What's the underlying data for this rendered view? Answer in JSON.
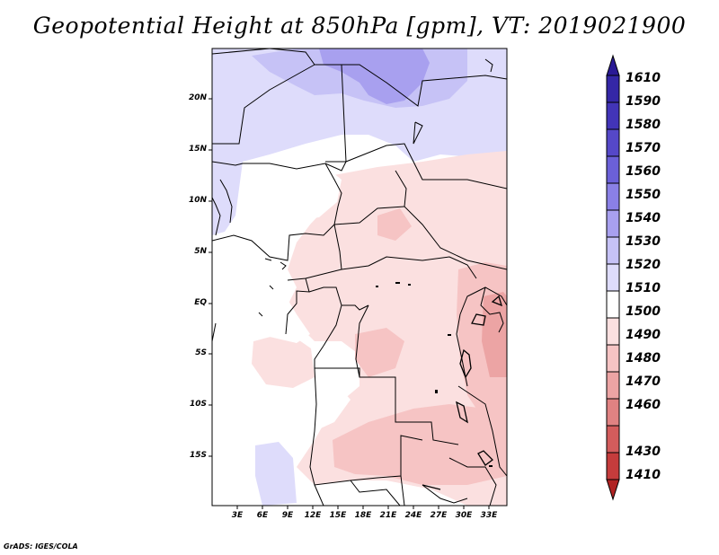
{
  "title": "Geopotential Height at 850hPa [gpm], VT: 2019021900",
  "credit": "GrADS: IGES/COLA",
  "y_axis_labels": [
    "20N",
    "15N",
    "10N",
    "5N",
    "EQ",
    "5S",
    "10S",
    "15S"
  ],
  "x_axis_labels": [
    "3E",
    "6E",
    "9E",
    "12E",
    "15E",
    "18E",
    "21E",
    "24E",
    "27E",
    "30E",
    "33E"
  ],
  "colorbar": {
    "labels": [
      "1610",
      "1590",
      "1580",
      "1570",
      "1560",
      "1550",
      "1540",
      "1530",
      "1520",
      "1510",
      "1500",
      "1490",
      "1480",
      "1470",
      "1460",
      "1430",
      "1410"
    ],
    "colors": [
      "#2a1a95",
      "#3427a6",
      "#4234b8",
      "#5548c8",
      "#6b60d8",
      "#8a80e6",
      "#a8a0ef",
      "#c6c2f6",
      "#dedcfb",
      "#ffffff",
      "#fbe0e0",
      "#f6c4c4",
      "#eca4a4",
      "#e08282",
      "#d35c5c",
      "#c53c3c",
      "#b02222"
    ]
  }
}
